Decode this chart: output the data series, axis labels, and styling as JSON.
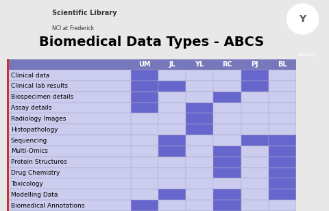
{
  "title": "Biomedical Data Types - ABCS",
  "subtitle_logo": "Scientific Library\nNCI at Frederick",
  "columns": [
    "UM",
    "JL",
    "YL",
    "RC",
    "PJ",
    "BL"
  ],
  "rows": [
    "Clinical data",
    "Clinical lab results",
    "Biospecimen details",
    "Assay details",
    "Radiology Images",
    "Histopathology",
    "Sequencing",
    "Multi-Omics",
    "Protein Structures",
    "Drug Chemistry",
    "Toxicology",
    "Modelling Data",
    "Biomedical Annotations"
  ],
  "matrix": [
    [
      1,
      0,
      0,
      0,
      1,
      0
    ],
    [
      1,
      1,
      0,
      0,
      1,
      0
    ],
    [
      1,
      0,
      0,
      1,
      0,
      0
    ],
    [
      1,
      0,
      1,
      0,
      0,
      0
    ],
    [
      0,
      0,
      1,
      0,
      0,
      0
    ],
    [
      0,
      0,
      1,
      0,
      0,
      0
    ],
    [
      0,
      1,
      0,
      0,
      1,
      1
    ],
    [
      0,
      1,
      0,
      1,
      0,
      1
    ],
    [
      0,
      0,
      0,
      1,
      0,
      1
    ],
    [
      0,
      0,
      0,
      1,
      0,
      1
    ],
    [
      0,
      0,
      0,
      0,
      0,
      1
    ],
    [
      0,
      1,
      0,
      1,
      0,
      1
    ],
    [
      1,
      0,
      0,
      1,
      0,
      0
    ]
  ],
  "color_dark": "#6666cc",
  "color_light": "#ccccee",
  "header_color": "#7777bb",
  "header_text_color": "#ffffff",
  "bg_color": "#ffffff",
  "grid_color": "#aaaacc",
  "row_label_color": "#000000",
  "title_color": "#000000",
  "border_left_color": "#cc3333",
  "outer_bg": "#e8e8e8"
}
